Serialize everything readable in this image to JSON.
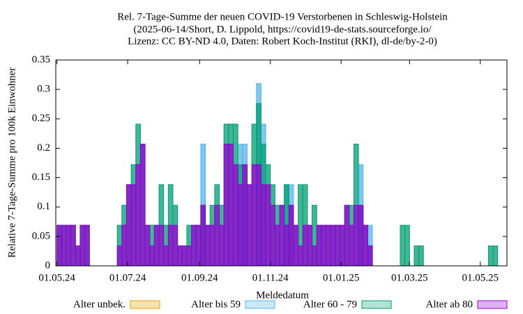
{
  "chart_data": {
    "type": "bar",
    "title": "Rel. 7-Tage-Summe der neuen COVID-19 Verstorbenen in Schleswig-Holstein",
    "subtitle": [
      "(2025-06-14/Short, D. Lippold, https://covid19-de-stats.sourceforge.io/",
      "Lizenz: CC BY-ND 4.0, Daten: Robert Koch-Institut (RKI), dl-de/by-2-0)"
    ],
    "x_label": "Meldedatum",
    "y_label": "Relative 7-Tage-Summe pro 100k Einwohner",
    "x": [
      "2024-05-01",
      "2024-05-05",
      "2024-05-09",
      "2024-05-13",
      "2024-05-17",
      "2024-05-21",
      "2024-05-25",
      "2024-05-29",
      "2024-06-02",
      "2024-06-06",
      "2024-06-10",
      "2024-06-14",
      "2024-06-18",
      "2024-06-22",
      "2024-06-26",
      "2024-06-30",
      "2024-07-04",
      "2024-07-08",
      "2024-07-12",
      "2024-07-16",
      "2024-07-20",
      "2024-07-24",
      "2024-07-28",
      "2024-08-01",
      "2024-08-05",
      "2024-08-09",
      "2024-08-13",
      "2024-08-17",
      "2024-08-21",
      "2024-08-25",
      "2024-08-29",
      "2024-09-02",
      "2024-09-06",
      "2024-09-10",
      "2024-09-14",
      "2024-09-18",
      "2024-09-22",
      "2024-09-26",
      "2024-09-30",
      "2024-10-04",
      "2024-10-08",
      "2024-10-12",
      "2024-10-16",
      "2024-10-20",
      "2024-10-24",
      "2024-10-28",
      "2024-11-01",
      "2024-11-05",
      "2024-11-09",
      "2024-11-13",
      "2024-11-17",
      "2024-11-21",
      "2024-11-25",
      "2024-11-29",
      "2024-12-03",
      "2024-12-07",
      "2024-12-11",
      "2024-12-15",
      "2024-12-19",
      "2024-12-23",
      "2024-12-27",
      "2024-12-31",
      "2025-01-04",
      "2025-01-08",
      "2025-01-12",
      "2025-01-16",
      "2025-01-20",
      "2025-01-24",
      "2025-01-28",
      "2025-02-01",
      "2025-02-05",
      "2025-02-09",
      "2025-02-13",
      "2025-02-17",
      "2025-02-21",
      "2025-02-25",
      "2025-03-01",
      "2025-03-05",
      "2025-03-09",
      "2025-03-13",
      "2025-03-17",
      "2025-03-21",
      "2025-03-25",
      "2025-03-29",
      "2025-04-02",
      "2025-04-06",
      "2025-04-10",
      "2025-04-14",
      "2025-04-18",
      "2025-04-22",
      "2025-04-26",
      "2025-04-30",
      "2025-05-04",
      "2025-05-08",
      "2025-05-12",
      "2025-05-16",
      "2025-05-20"
    ],
    "series": [
      {
        "name": "Alter unbek.",
        "color": "#e69f00",
        "values": [
          0,
          0,
          0,
          0,
          0,
          0,
          0,
          0,
          0,
          0,
          0,
          0,
          0,
          0,
          0,
          0,
          0,
          0,
          0,
          0,
          0,
          0,
          0,
          0,
          0,
          0,
          0,
          0,
          0,
          0,
          0,
          0,
          0,
          0,
          0,
          0,
          0,
          0,
          0,
          0,
          0,
          0,
          0,
          0,
          0,
          0,
          0,
          0,
          0,
          0,
          0,
          0,
          0,
          0,
          0,
          0,
          0,
          0,
          0,
          0,
          0,
          0,
          0,
          0,
          0,
          0,
          0,
          0,
          0,
          0,
          0,
          0,
          0,
          0,
          0,
          0,
          0,
          0,
          0,
          0,
          0,
          0,
          0,
          0,
          0,
          0,
          0,
          0,
          0,
          0,
          0,
          0,
          0,
          0,
          0,
          0,
          0
        ]
      },
      {
        "name": "Alter bis 59",
        "color": "#56b4e9",
        "values": [
          0,
          0,
          0,
          0,
          0,
          0,
          0,
          0,
          0,
          0,
          0,
          0,
          0,
          0,
          0,
          0,
          0,
          0,
          0,
          0,
          0,
          0,
          0,
          0,
          0,
          0,
          0,
          0,
          0,
          0,
          0,
          0.207,
          0,
          0,
          0,
          0,
          0,
          0,
          0,
          0.207,
          0.207,
          0,
          0,
          0.31,
          0.241,
          0,
          0,
          0,
          0,
          0.138,
          0.138,
          0,
          0,
          0,
          0,
          0,
          0,
          0,
          0,
          0,
          0,
          0,
          0,
          0,
          0,
          0.172,
          0,
          0.069,
          0,
          0,
          0,
          0,
          0,
          0,
          0,
          0,
          0,
          0,
          0,
          0,
          0,
          0,
          0,
          0,
          0,
          0,
          0,
          0,
          0,
          0,
          0,
          0,
          0,
          0,
          0,
          0,
          0
        ]
      },
      {
        "name": "Alter 60 - 79",
        "color": "#009e73",
        "values": [
          0.069,
          0.069,
          0.069,
          0.069,
          0.034,
          0.069,
          0.069,
          0,
          0,
          0,
          0,
          0,
          0,
          0.069,
          0.103,
          0.138,
          0.172,
          0.241,
          0.207,
          0.069,
          0.069,
          0.069,
          0.138,
          0.069,
          0.138,
          0.103,
          0.034,
          0.034,
          0.069,
          0.069,
          0.069,
          0.103,
          0.069,
          0.103,
          0.138,
          0.103,
          0.241,
          0.241,
          0.241,
          0.172,
          0.172,
          0.138,
          0.241,
          0.276,
          0.207,
          0.172,
          0.138,
          0.103,
          0.103,
          0.138,
          0.103,
          0.069,
          0.138,
          0.138,
          0.069,
          0.103,
          0.069,
          0.069,
          0.069,
          0.069,
          0.069,
          0.069,
          0.103,
          0.103,
          0.207,
          0.103,
          0.069,
          0.034,
          0,
          0,
          0,
          0,
          0,
          0,
          0.069,
          0.069,
          0,
          0.034,
          0.034,
          0,
          0,
          0,
          0,
          0,
          0,
          0,
          0,
          0,
          0,
          0,
          0,
          0,
          0,
          0.034,
          0.034,
          0,
          0
        ]
      },
      {
        "name": "Alter ab 80",
        "color": "#9400d3",
        "values": [
          0.069,
          0.069,
          0.069,
          0.069,
          0.034,
          0.069,
          0.069,
          0,
          0,
          0,
          0,
          0,
          0,
          0.034,
          0.069,
          0.138,
          0.138,
          0.172,
          0.207,
          0.069,
          0.034,
          0.069,
          0.069,
          0.034,
          0.069,
          0.069,
          0.034,
          0.034,
          0.034,
          0.069,
          0.069,
          0.103,
          0.069,
          0.069,
          0.103,
          0.069,
          0.207,
          0.207,
          0.172,
          0.138,
          0.172,
          0.138,
          0.172,
          0.172,
          0.138,
          0.138,
          0.103,
          0.069,
          0.103,
          0.069,
          0.103,
          0.069,
          0.034,
          0.069,
          0.069,
          0.034,
          0.069,
          0.069,
          0.069,
          0.069,
          0.069,
          0.069,
          0.103,
          0.069,
          0.103,
          0.103,
          0.069,
          0.034,
          0,
          0,
          0,
          0,
          0,
          0,
          0,
          0,
          0,
          0,
          0,
          0,
          0,
          0,
          0,
          0,
          0,
          0,
          0,
          0,
          0,
          0,
          0,
          0,
          0,
          0,
          0,
          0,
          0
        ]
      }
    ],
    "xlim": [
      "2024-04-30",
      "2025-05-24"
    ],
    "xticks": [
      {
        "value": "2024-05-01",
        "label": "01.05.24"
      },
      {
        "value": "2024-07-01",
        "label": "01.07.24"
      },
      {
        "value": "2024-09-01",
        "label": "01.09.24"
      },
      {
        "value": "2024-11-01",
        "label": "01.11.24"
      },
      {
        "value": "2025-01-01",
        "label": "01.01.25"
      },
      {
        "value": "2025-03-01",
        "label": "01.03.25"
      },
      {
        "value": "2025-05-01",
        "label": "01.05.25"
      }
    ],
    "ylim": [
      0,
      0.35
    ],
    "yticks": [
      0,
      0.05,
      0.1,
      0.15,
      0.2,
      0.25,
      0.3,
      0.35
    ],
    "grid": false,
    "legend": "bottom"
  }
}
